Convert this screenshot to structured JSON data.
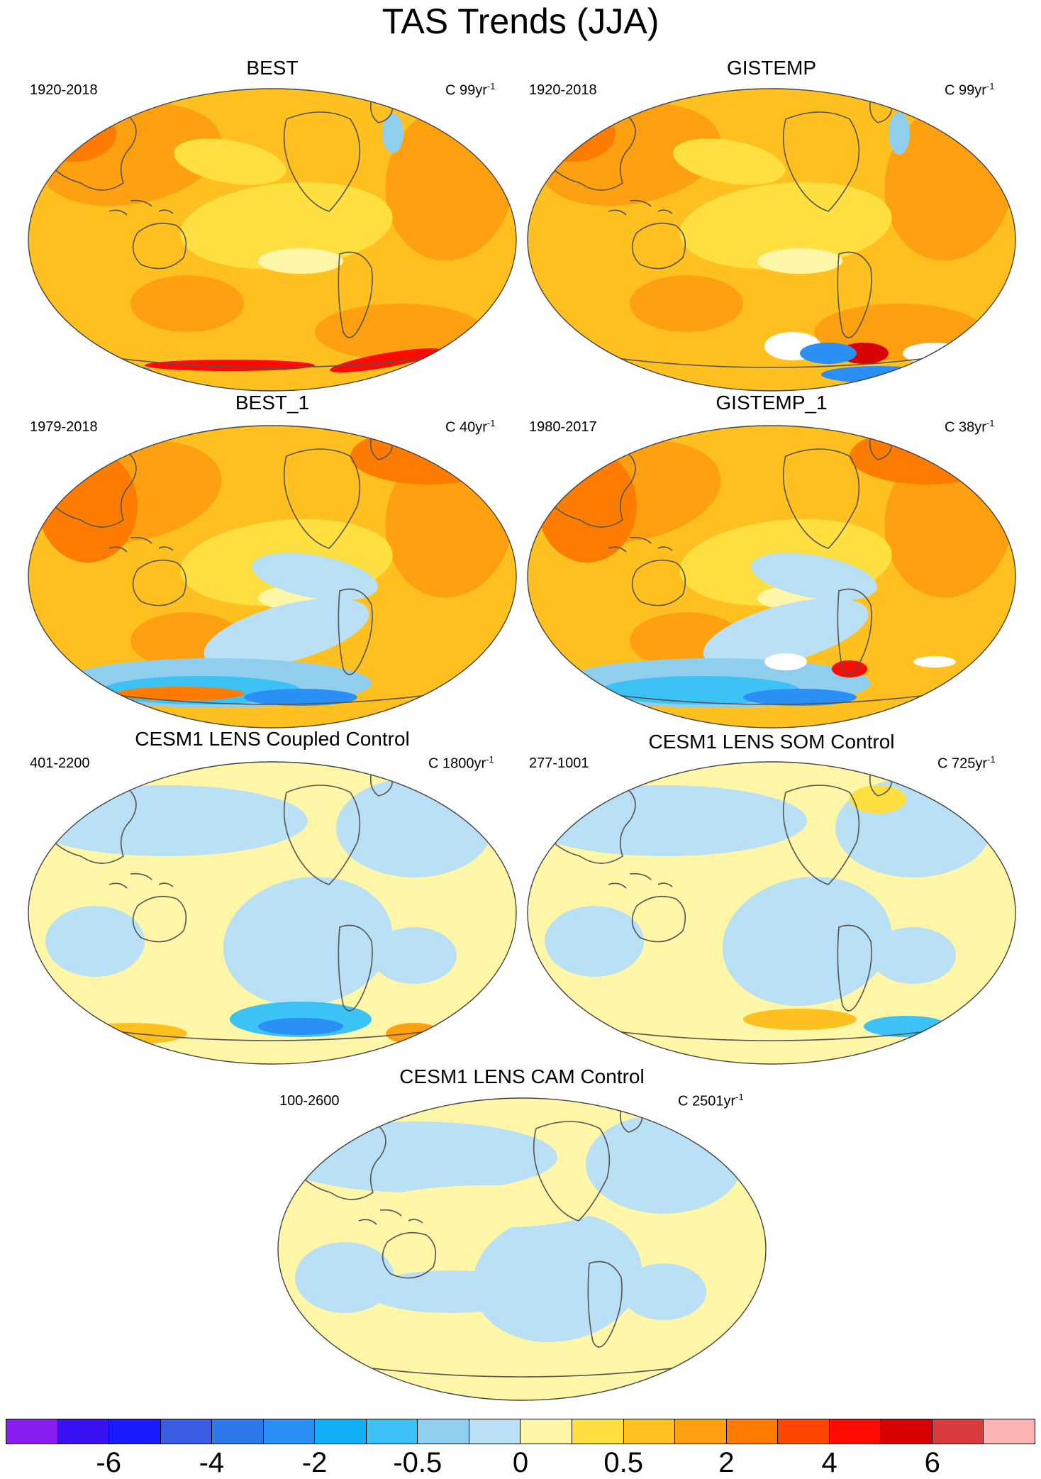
{
  "title": "TAS Trends (JJA)",
  "panels": [
    {
      "title": "BEST",
      "range": "1920-2018",
      "units": "C 99yr",
      "units_exp": "-1",
      "pattern": "warm",
      "extras": "best"
    },
    {
      "title": "GISTEMP",
      "range": "1920-2018",
      "units": "C 99yr",
      "units_exp": "-1",
      "pattern": "warm",
      "extras": "gistemp"
    },
    {
      "title": "BEST_1",
      "range": "1979-2018",
      "units": "C 40yr",
      "units_exp": "-1",
      "pattern": "warm2",
      "extras": "best1"
    },
    {
      "title": "GISTEMP_1",
      "range": "1980-2017",
      "units": "C 38yr",
      "units_exp": "-1",
      "pattern": "warm2",
      "extras": "gistemp1"
    },
    {
      "title": "CESM1 LENS Coupled Control",
      "range": "401-2200",
      "units": "C 1800yr",
      "units_exp": "-1",
      "pattern": "neutral",
      "extras": "coupled"
    },
    {
      "title": "CESM1 LENS SOM Control",
      "range": "277-1001",
      "units": "C 725yr",
      "units_exp": "-1",
      "pattern": "neutral",
      "extras": "som"
    },
    {
      "title": "CESM1 LENS CAM Control",
      "range": "100-2600",
      "units": "C 2501yr",
      "units_exp": "-1",
      "pattern": "neutral",
      "extras": "cam"
    }
  ],
  "colorbar": {
    "colors": [
      "#8a1ef0",
      "#3a10f5",
      "#1a1aff",
      "#3c5ce6",
      "#2e78ee",
      "#2a90f5",
      "#10b0f7",
      "#3cc2f4",
      "#90ceee",
      "#b9e0f5",
      "#fff6a8",
      "#ffe040",
      "#ffc020",
      "#ffa010",
      "#ff7c00",
      "#ff4600",
      "#ff0a00",
      "#d80000",
      "#d83c3c",
      "#ffb4b4"
    ],
    "labels": [
      "-6",
      "-4",
      "-2",
      "-0.5",
      "0",
      "0.5",
      "2",
      "4",
      "6"
    ]
  },
  "legend_colors": {
    "land_outline": "#555555",
    "missing": "#ffffff"
  }
}
